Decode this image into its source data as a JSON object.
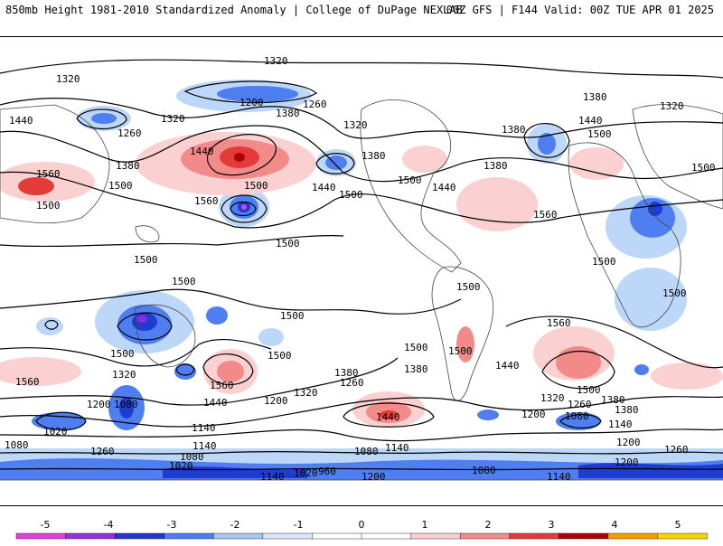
{
  "header": {
    "title_left": "850mb Height 1981-2010 Standardized Anomaly | College of DuPage NEXLAB",
    "title_right": "00Z GFS | F144 Valid: 00Z TUE APR 01 2025"
  },
  "map": {
    "variable": "850mb geopotential height (contours) and standardized anomaly (shading)",
    "contour_labels": [
      "1320",
      "1320",
      "1440",
      "1260",
      "1320",
      "1380",
      "1200",
      "1260",
      "1380",
      "1380",
      "1320",
      "1380",
      "1320",
      "1440",
      "1560",
      "1500",
      "1440",
      "1500",
      "1500",
      "1560",
      "1560",
      "1500",
      "1440",
      "1500",
      "1380",
      "1380",
      "1500",
      "1500",
      "1560",
      "1500",
      "1500",
      "1500",
      "1500",
      "1500",
      "1500",
      "1500",
      "1500",
      "1500",
      "1500",
      "1500",
      "1500",
      "1380",
      "1560",
      "1440",
      "1500",
      "1560",
      "1320",
      "1080",
      "1440",
      "1200",
      "1020",
      "1080",
      "1380",
      "1260",
      "1320",
      "1380",
      "1440",
      "1320",
      "1260",
      "1380",
      "1200",
      "1080",
      "1200",
      "1140",
      "1140",
      "1020",
      "1080",
      "1020",
      "960",
      "1200",
      "1080",
      "1140",
      "1140",
      "1260",
      "1200"
    ],
    "colors": {
      "neg5": "#e040e0",
      "neg4": "#8a2be2",
      "neg3": "#1e3ccf",
      "neg2": "#4f7ef0",
      "neg1": "#bcd7f7",
      "pos1": "#fbd0d0",
      "pos2": "#f28a8a",
      "pos3": "#e33a3a",
      "pos4": "#b30000",
      "pos5": "#f5b800"
    }
  },
  "colorbar": {
    "ticks": [
      "-5",
      "-4",
      "-3",
      "-2",
      "-1",
      "0",
      "1",
      "2",
      "3",
      "4",
      "5"
    ],
    "segments": [
      "#e040e0",
      "#9a30d8",
      "#2238c8",
      "#4f7ef0",
      "#a8c8f4",
      "#dbe8fb",
      "#ffffff",
      "#ffffff",
      "#fbd0d0",
      "#f08c8c",
      "#e03c3c",
      "#b00000",
      "#f0a000",
      "#ffd200"
    ]
  }
}
